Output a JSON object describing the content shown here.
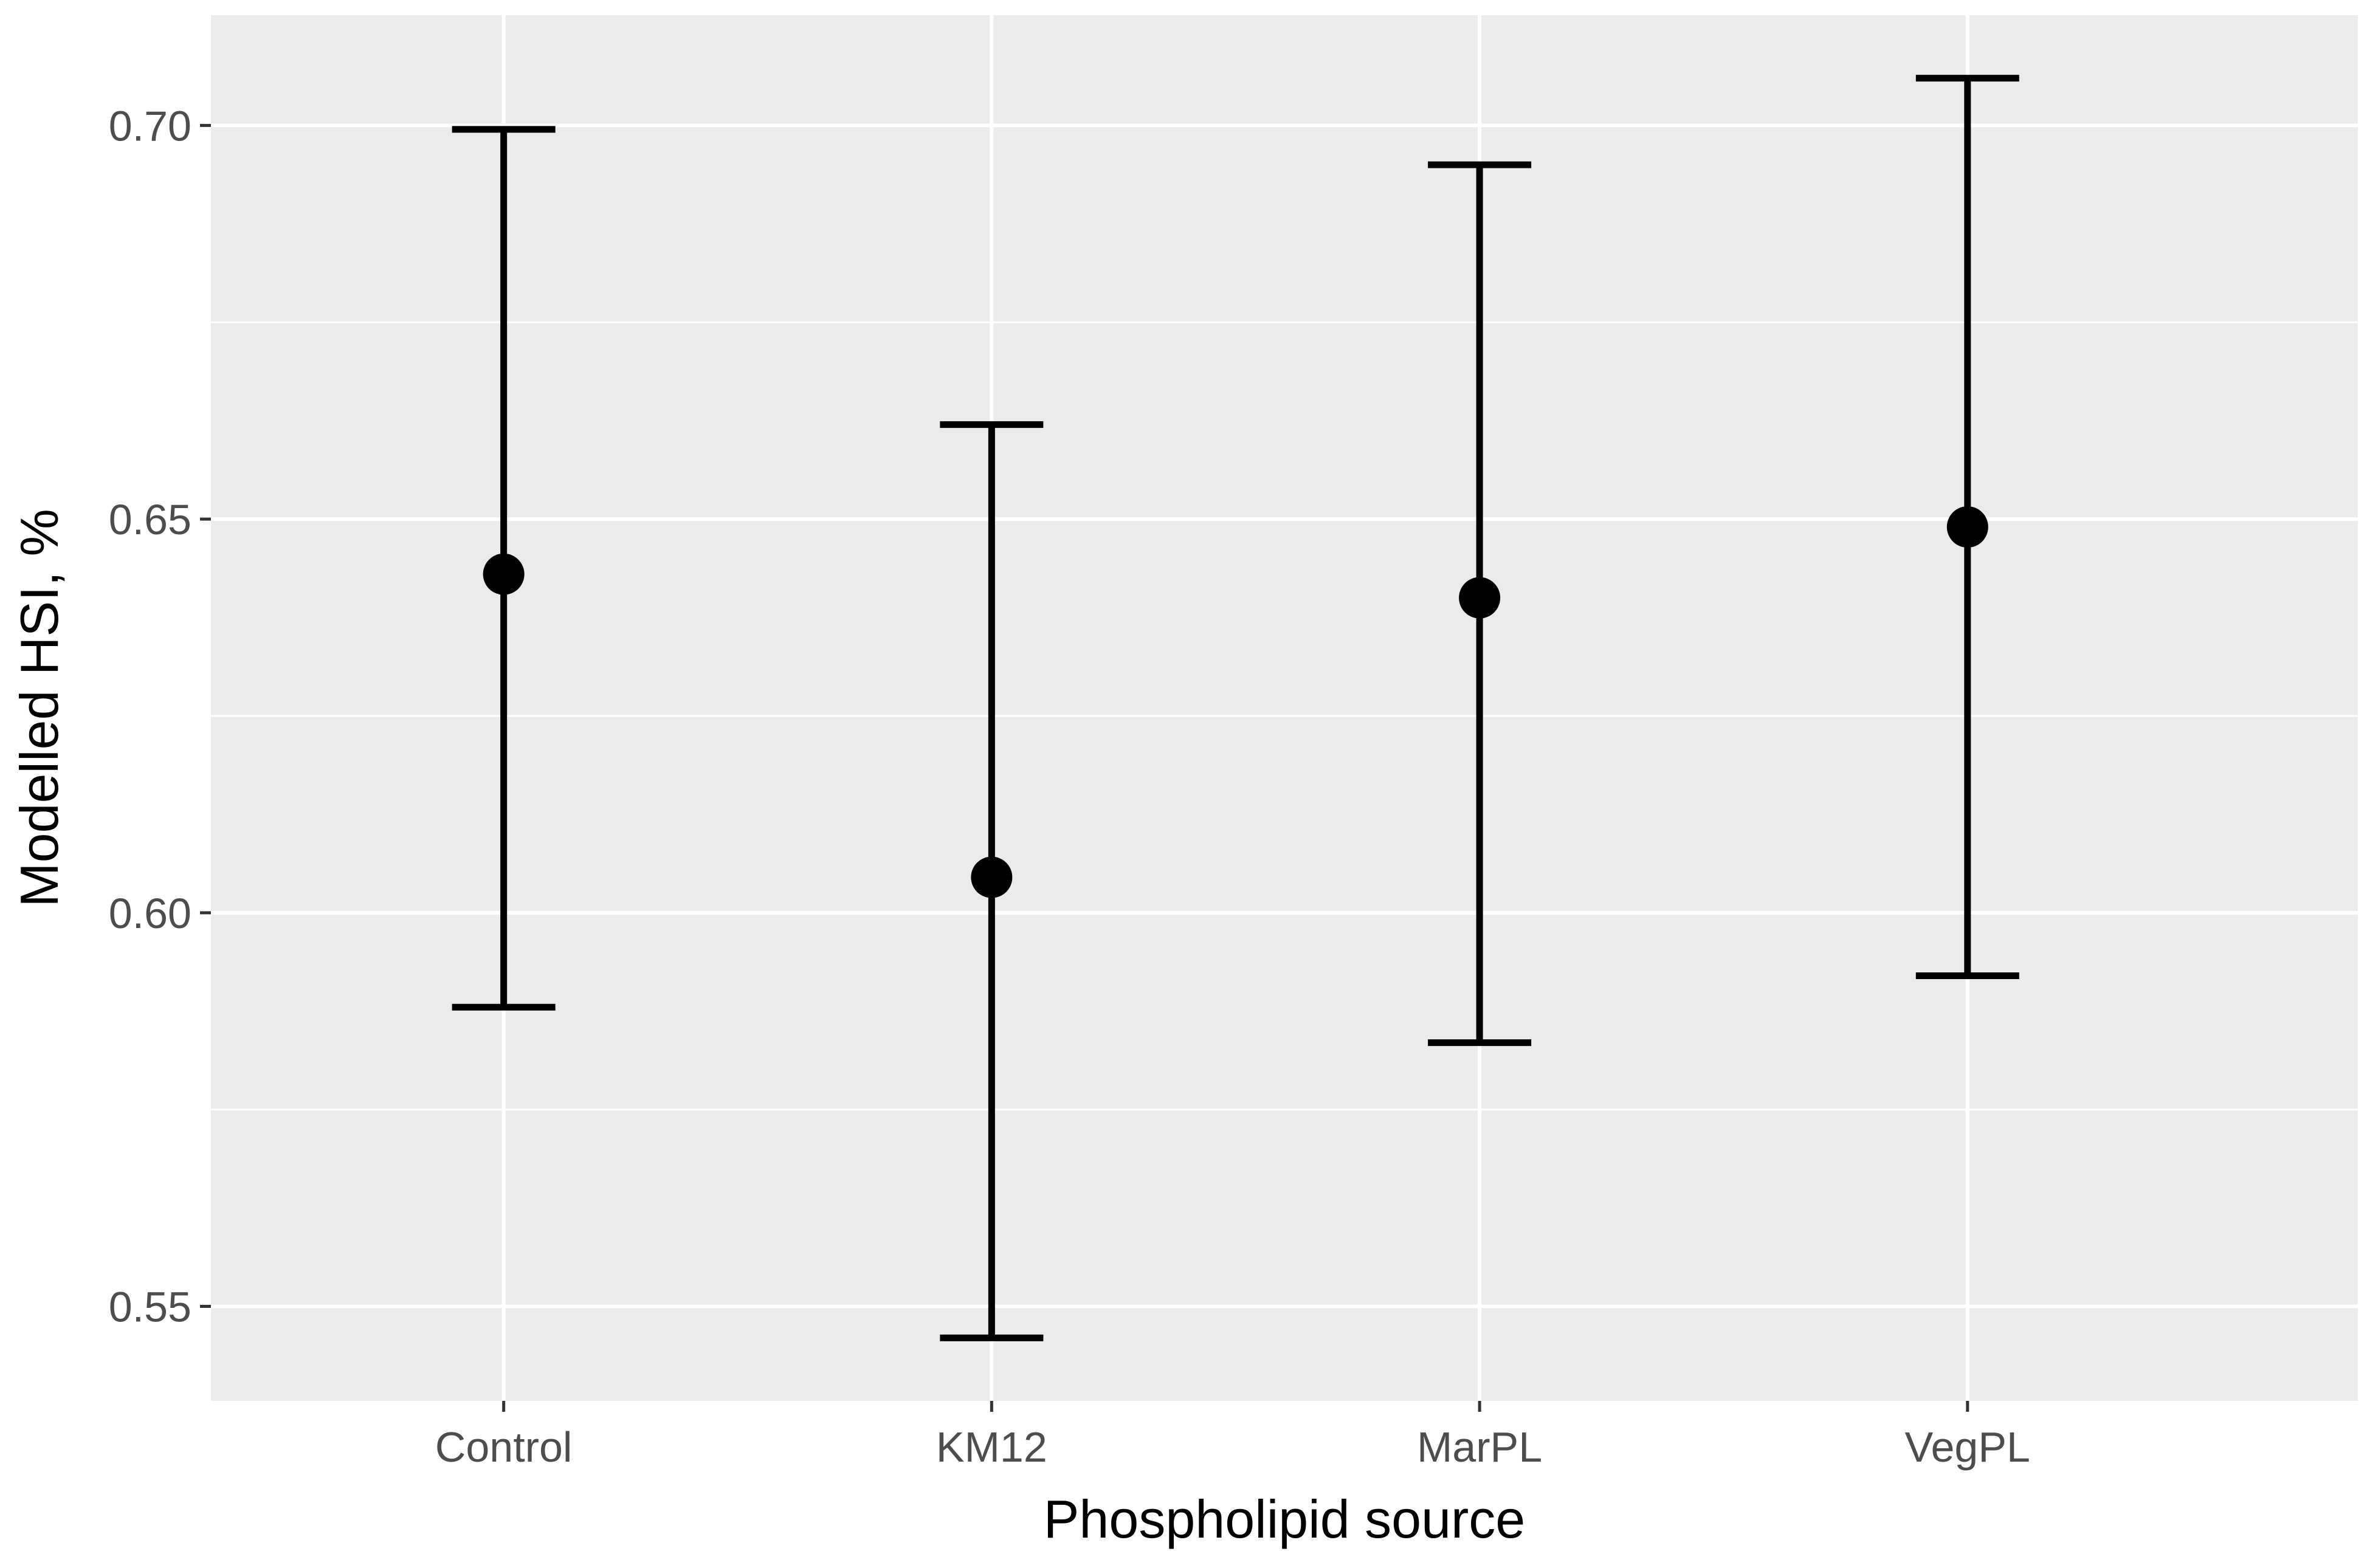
{
  "chart_data": {
    "type": "scatter",
    "title": "",
    "xlabel": "Phospholipid source",
    "ylabel": "Modelled HSI, %",
    "categories": [
      "Control",
      "KM12",
      "MarPL",
      "VegPL"
    ],
    "series": [
      {
        "values": [
          0.643,
          0.6045,
          0.64,
          0.649
        ],
        "lower": [
          0.588,
          0.546,
          0.5835,
          0.592
        ],
        "upper": [
          0.6995,
          0.662,
          0.695,
          0.706
        ]
      }
    ],
    "ylim": [
      0.538,
      0.714
    ],
    "yticks": [
      0.55,
      0.6,
      0.65,
      0.7
    ],
    "ytick_labels": [
      "0.55",
      "0.60",
      "0.65",
      "0.70"
    ],
    "grid": true,
    "colors": {
      "panel": "#ebebeb",
      "grid": "#ffffff",
      "marks": "#000000",
      "tick_text": "#4d4d4d",
      "tick_marks": "#333333"
    }
  }
}
